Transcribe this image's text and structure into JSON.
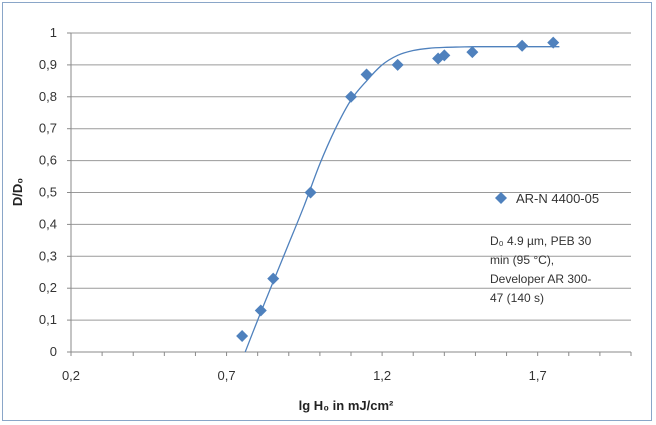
{
  "chart_data": {
    "type": "scatter",
    "xlabel": "lg H₀ in mJ/cm²",
    "ylabel": "D/D₀",
    "xlim": [
      0.2,
      2.0
    ],
    "ylim": [
      0,
      1
    ],
    "xticks": [
      0.2,
      0.7,
      1.2,
      1.7
    ],
    "xtick_labels": [
      "0,2",
      "0,7",
      "1,2",
      "1,7"
    ],
    "yticks": [
      0,
      0.1,
      0.2,
      0.3,
      0.4,
      0.5,
      0.6,
      0.7,
      0.8,
      0.9,
      1
    ],
    "ytick_labels": [
      "0",
      "0,1",
      "0,2",
      "0,3",
      "0,4",
      "0,5",
      "0,6",
      "0,7",
      "0,8",
      "0,9",
      "1"
    ],
    "grid": "horizontal",
    "legend_position": "right",
    "series": [
      {
        "name": "AR-N 4400-05",
        "marker": "diamond",
        "color": "#4f81bd",
        "x": [
          0.75,
          0.81,
          0.85,
          0.97,
          1.1,
          1.15,
          1.25,
          1.38,
          1.4,
          1.49,
          1.65,
          1.75
        ],
        "y": [
          0.05,
          0.13,
          0.23,
          0.5,
          0.8,
          0.87,
          0.9,
          0.92,
          0.93,
          0.94,
          0.96,
          0.97
        ]
      }
    ],
    "trendline": {
      "color": "#4f81bd",
      "x": [
        0.76,
        0.8,
        0.85,
        0.9,
        0.95,
        1.0,
        1.05,
        1.1,
        1.15,
        1.2,
        1.25,
        1.3,
        1.35,
        1.4,
        1.45,
        1.5,
        1.6,
        1.7,
        1.77
      ],
      "y": [
        0.0,
        0.1,
        0.22,
        0.34,
        0.46,
        0.59,
        0.7,
        0.79,
        0.85,
        0.9,
        0.93,
        0.945,
        0.952,
        0.955,
        0.956,
        0.957,
        0.957,
        0.957,
        0.957
      ]
    },
    "annotation_lines": [
      "D₀ 4.9 µm, PEB 30",
      "min (95 °C),",
      "Developer AR 300-",
      "47 (140 s)"
    ]
  }
}
